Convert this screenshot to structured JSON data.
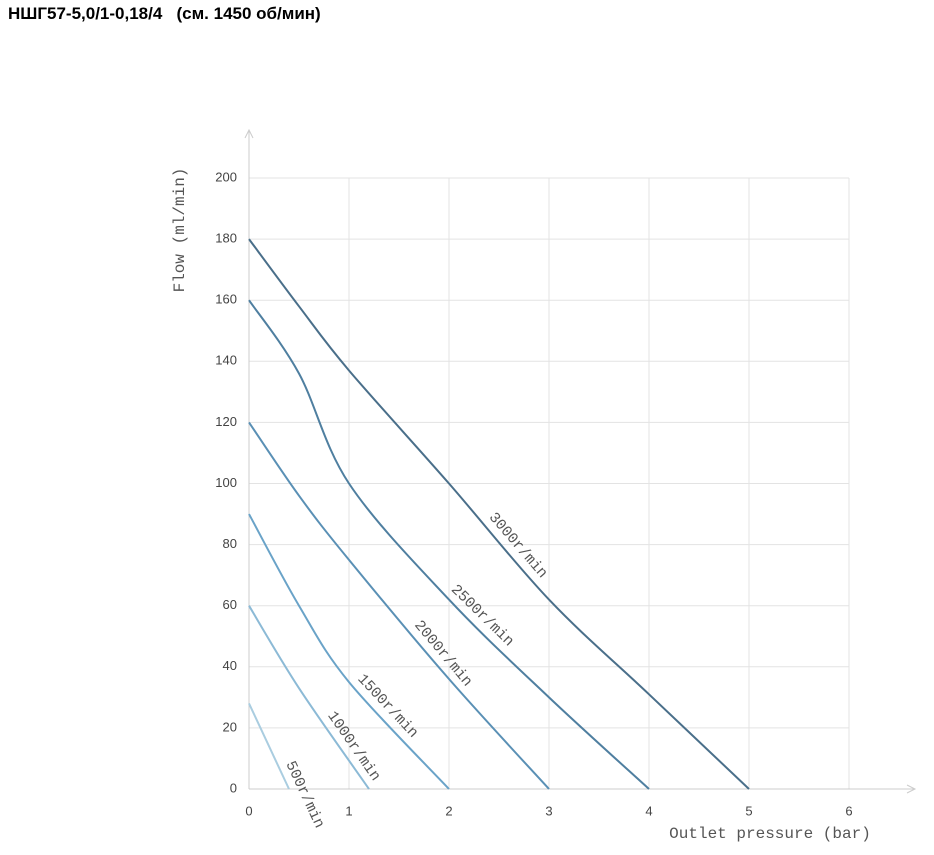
{
  "title": "НШГ57-5,0/1-0,18/4   (см. 1450 об/мин)",
  "chart_data": {
    "type": "line",
    "xlabel": "Outlet pressure (bar)",
    "ylabel": "Flow (ml/min)",
    "xlim": [
      0,
      6
    ],
    "ylim": [
      0,
      200
    ],
    "xticks": [
      0,
      1,
      2,
      3,
      4,
      5,
      6
    ],
    "yticks": [
      0,
      20,
      40,
      60,
      80,
      100,
      120,
      140,
      160,
      180,
      200
    ],
    "grid": true,
    "series": [
      {
        "name": "3000r/min",
        "color": "#4a6f8a",
        "x": [
          0,
          0.5,
          1,
          2,
          3,
          4,
          5
        ],
        "values": [
          180,
          158,
          137,
          100,
          62,
          31,
          0
        ]
      },
      {
        "name": "2500r/min",
        "color": "#4f7fa0",
        "x": [
          0,
          0.5,
          1,
          2,
          3,
          4
        ],
        "values": [
          160,
          136,
          100,
          62,
          30,
          0
        ]
      },
      {
        "name": "2000r/min",
        "color": "#5a90b5",
        "x": [
          0,
          0.5,
          1,
          2,
          3
        ],
        "values": [
          120,
          96,
          75,
          36,
          0
        ]
      },
      {
        "name": "1500r/min",
        "color": "#6aa3c8",
        "x": [
          0,
          0.5,
          1,
          2
        ],
        "values": [
          90,
          60,
          35,
          0
        ]
      },
      {
        "name": "1000r/min",
        "color": "#8cbad6",
        "x": [
          0,
          0.5,
          1.2
        ],
        "values": [
          60,
          33,
          0
        ]
      },
      {
        "name": "500r/min",
        "color": "#aacde0",
        "x": [
          0,
          0.4
        ],
        "values": [
          28,
          0
        ]
      }
    ]
  }
}
